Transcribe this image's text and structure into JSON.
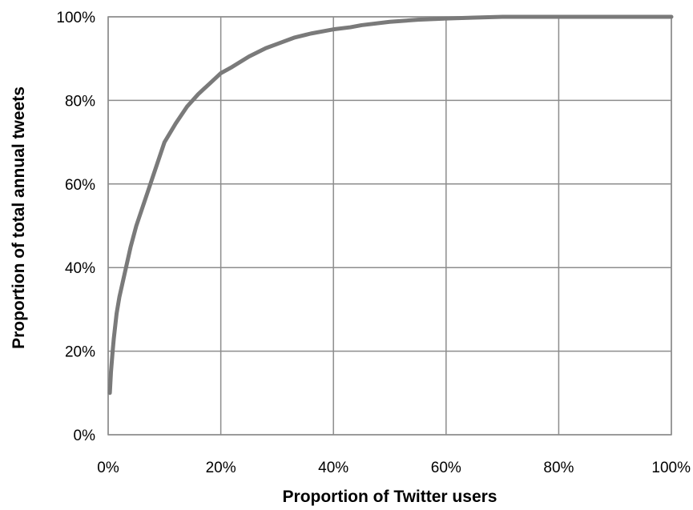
{
  "chart_data": {
    "type": "line",
    "title": "",
    "xlabel": "Proportion of Twitter users",
    "ylabel": "Proportion of total annual tweets",
    "xlim": [
      0,
      100
    ],
    "ylim": [
      0,
      100
    ],
    "x_ticks": [
      0,
      20,
      40,
      60,
      80,
      100
    ],
    "y_ticks": [
      0,
      20,
      40,
      60,
      80,
      100
    ],
    "x_tick_labels": [
      "0%",
      "20%",
      "40%",
      "60%",
      "80%",
      "100%"
    ],
    "y_tick_labels": [
      "0%",
      "20%",
      "40%",
      "60%",
      "80%",
      "100%"
    ],
    "grid": true,
    "legend": "none",
    "series": [
      {
        "color": "#7a7a7a",
        "x": [
          0.3,
          0.5,
          0.8,
          1,
          1.5,
          2,
          3,
          4,
          5,
          6,
          7,
          8,
          9,
          10,
          12,
          14,
          16,
          18,
          20,
          22,
          25,
          28,
          30,
          33,
          36,
          40,
          43,
          45,
          50,
          55,
          60,
          65,
          70,
          80,
          90,
          100
        ],
        "y": [
          10,
          15,
          20,
          23,
          29,
          33,
          39,
          45,
          50,
          54,
          58,
          62,
          66,
          70,
          74.5,
          78.5,
          81.5,
          84,
          86.5,
          88,
          90.5,
          92.5,
          93.5,
          95,
          96,
          97,
          97.5,
          98,
          98.8,
          99.3,
          99.6,
          99.8,
          100,
          100,
          100,
          100
        ]
      }
    ]
  }
}
